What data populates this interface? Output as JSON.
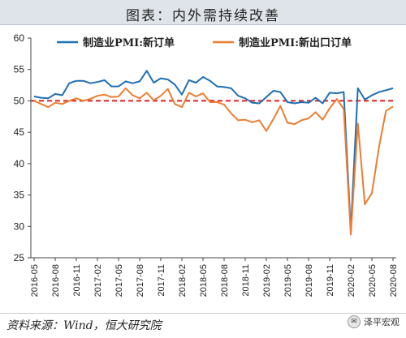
{
  "header": {
    "title": "图表：内外需持续改善"
  },
  "footer": {
    "source": "资料来源：Wind，恒大研究院"
  },
  "watermark": {
    "text": "泽平宏观",
    "icon": "wechat-icon"
  },
  "chart_data": {
    "type": "line",
    "ylim": [
      25,
      60
    ],
    "yticks": [
      25,
      30,
      35,
      40,
      45,
      50,
      55,
      60
    ],
    "reference_line": {
      "value": 50,
      "color": "#e02020",
      "style": "dashed"
    },
    "x": [
      "2016-05",
      "2016-06",
      "2016-07",
      "2016-08",
      "2016-09",
      "2016-10",
      "2016-11",
      "2016-12",
      "2017-01",
      "2017-02",
      "2017-03",
      "2017-04",
      "2017-05",
      "2017-06",
      "2017-07",
      "2017-08",
      "2017-09",
      "2017-10",
      "2017-11",
      "2017-12",
      "2018-01",
      "2018-02",
      "2018-03",
      "2018-04",
      "2018-05",
      "2018-06",
      "2018-07",
      "2018-08",
      "2018-09",
      "2018-10",
      "2018-11",
      "2018-12",
      "2019-01",
      "2019-02",
      "2019-03",
      "2019-04",
      "2019-05",
      "2019-06",
      "2019-07",
      "2019-08",
      "2019-09",
      "2019-10",
      "2019-11",
      "2019-12",
      "2020-01",
      "2020-02",
      "2020-03",
      "2020-04",
      "2020-05",
      "2020-06",
      "2020-07",
      "2020-08"
    ],
    "xtick_labels": [
      "2016-05",
      "2016-08",
      "2016-11",
      "2017-02",
      "2017-05",
      "2017-08",
      "2017-11",
      "2018-02",
      "2018-05",
      "2018-08",
      "2018-11",
      "2019-02",
      "2019-05",
      "2019-08",
      "2019-11",
      "2020-02",
      "2020-05",
      "2020-08"
    ],
    "series": [
      {
        "name": "制造业PMI:新订单",
        "color": "#1f6fb4",
        "values": [
          50.7,
          50.5,
          50.4,
          51.1,
          50.9,
          52.8,
          53.2,
          53.2,
          52.8,
          53.0,
          53.3,
          52.3,
          52.3,
          53.1,
          52.8,
          53.1,
          54.8,
          52.9,
          53.6,
          53.4,
          52.6,
          51.0,
          53.3,
          52.9,
          53.8,
          53.2,
          52.3,
          52.2,
          52.0,
          50.8,
          50.4,
          49.7,
          49.6,
          50.6,
          51.6,
          51.4,
          49.8,
          49.6,
          49.8,
          49.7,
          50.5,
          49.6,
          51.3,
          51.2,
          51.4,
          29.3,
          52.0,
          50.2,
          50.9,
          51.4,
          51.7,
          52.0
        ]
      },
      {
        "name": "制造业PMI:新出口订单",
        "color": "#ed7d31",
        "values": [
          50.0,
          49.5,
          49.0,
          49.7,
          49.5,
          50.0,
          50.4,
          50.0,
          50.3,
          50.8,
          51.0,
          50.6,
          50.7,
          52.0,
          50.9,
          50.4,
          51.3,
          50.1,
          50.8,
          51.9,
          49.5,
          49.0,
          51.3,
          50.7,
          51.2,
          49.8,
          49.8,
          49.4,
          48.0,
          46.9,
          47.0,
          46.6,
          46.9,
          45.2,
          47.1,
          49.2,
          46.5,
          46.3,
          46.9,
          47.2,
          48.2,
          47.0,
          48.8,
          50.3,
          48.7,
          28.7,
          46.4,
          33.5,
          35.3,
          42.6,
          48.4,
          49.1
        ]
      }
    ]
  }
}
